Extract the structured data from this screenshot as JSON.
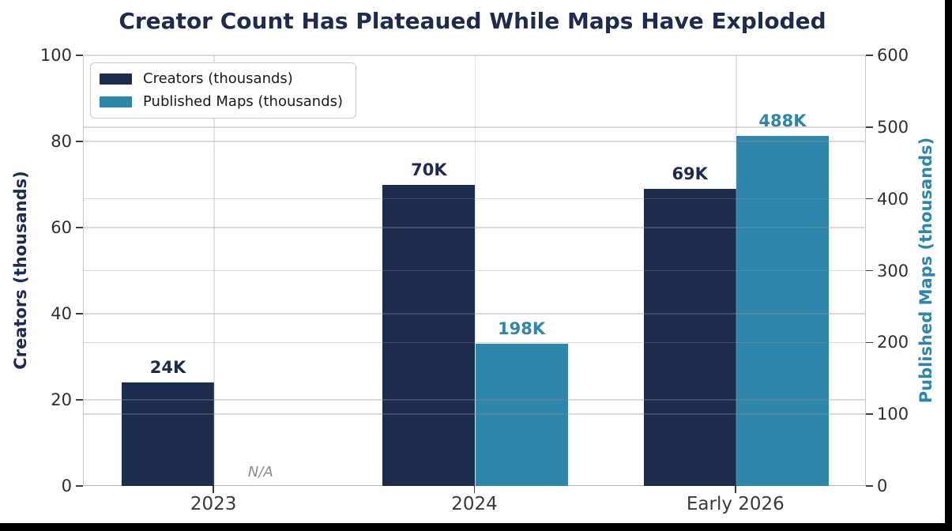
{
  "title": "Creator Count Has Plateaued While Maps Have Exploded",
  "chart_data": {
    "type": "bar",
    "categories": [
      "2023",
      "2024",
      "Early 2026"
    ],
    "series": [
      {
        "name": "Creators (thousands)",
        "axis": "left",
        "color": "#1d2b4c",
        "values": [
          24,
          70,
          69
        ],
        "labels": [
          "24K",
          "70K",
          "69K"
        ]
      },
      {
        "name": "Published Maps (thousands)",
        "axis": "right",
        "color": "#2e86ab",
        "values": [
          null,
          198,
          488
        ],
        "labels": [
          null,
          "198K",
          "488K"
        ]
      }
    ],
    "missing_label": "N/A",
    "left_axis": {
      "label": "Creators (thousands)",
      "min": 0,
      "max": 100,
      "ticks": [
        0,
        20,
        40,
        60,
        80,
        100
      ],
      "color": "#1d2b4c"
    },
    "right_axis": {
      "label": "Published Maps (thousands)",
      "min": 0,
      "max": 600,
      "ticks": [
        0,
        100,
        200,
        300,
        400,
        500,
        600
      ],
      "color": "#2e86ab"
    },
    "legend": {
      "position": "upper left",
      "entries": [
        "Creators (thousands)",
        "Published Maps (thousands)"
      ]
    },
    "grid": true,
    "grid_color": "#8c8c8c"
  }
}
